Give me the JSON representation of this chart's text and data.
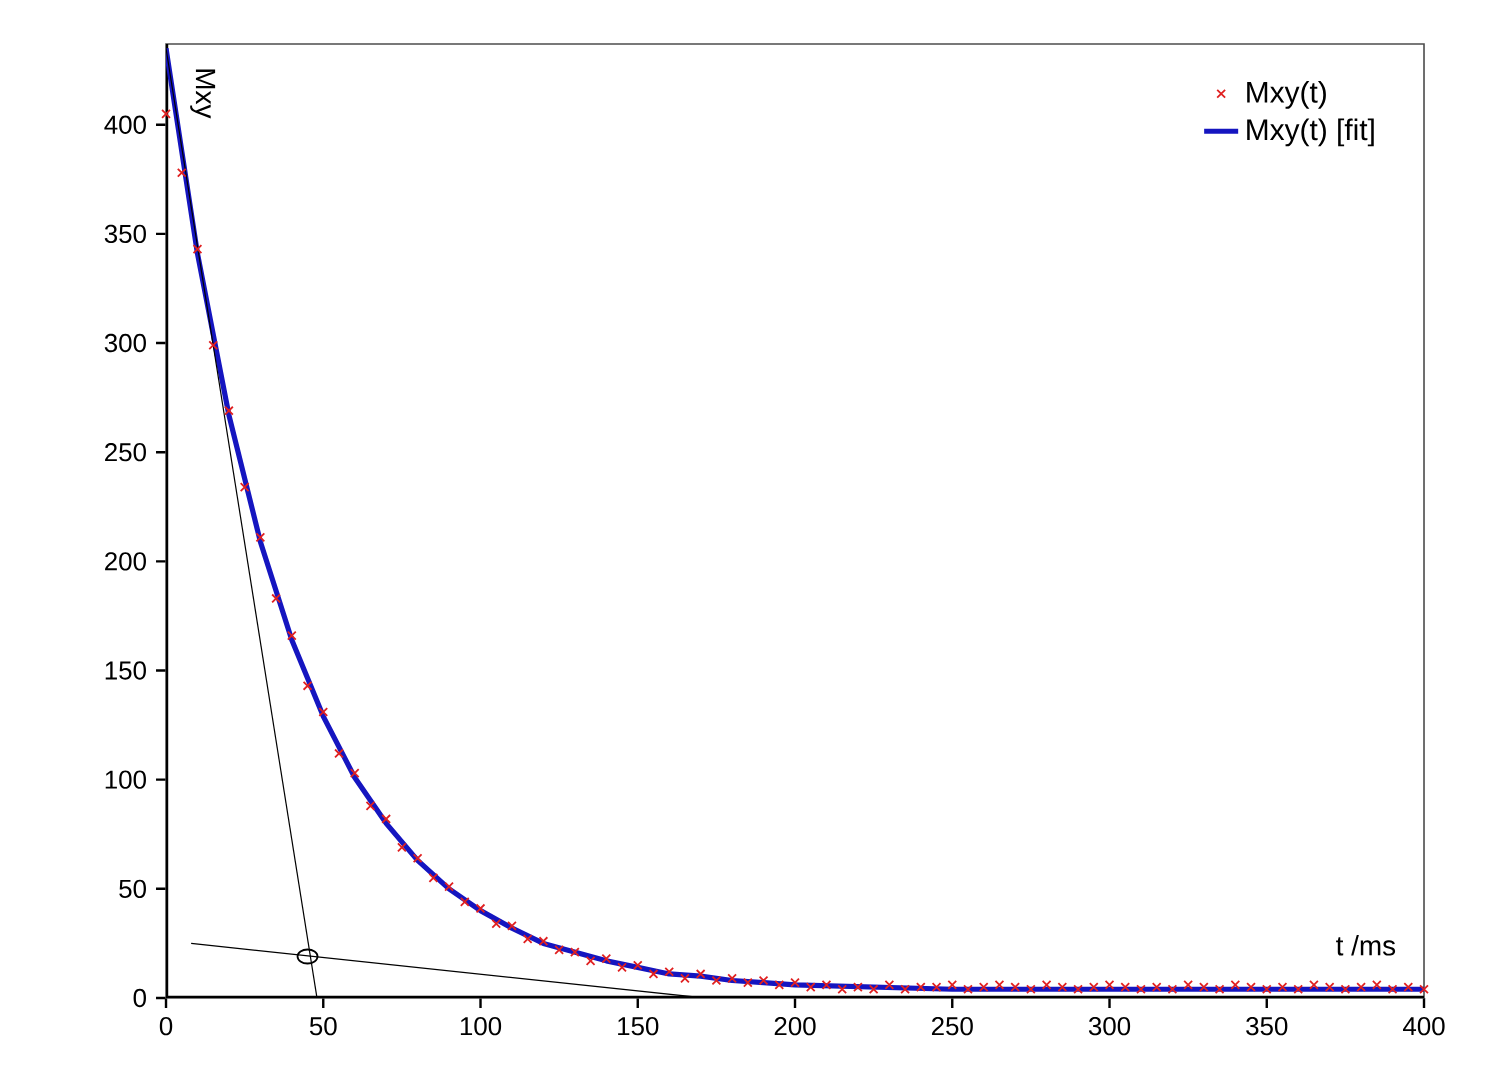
{
  "chart_data": {
    "type": "scatter",
    "ylabel": "Mxy",
    "xlabel": "t /ms",
    "xlim": [
      0,
      400
    ],
    "ylim": [
      0,
      437
    ],
    "xticks": [
      0,
      50,
      100,
      150,
      200,
      250,
      300,
      350,
      400
    ],
    "yticks": [
      0,
      50,
      100,
      150,
      200,
      250,
      300,
      350,
      400
    ],
    "legend": "top right",
    "series": [
      {
        "name": "Mxy(t)",
        "marker": "cross",
        "color": "#e02020",
        "x": [
          0,
          5,
          10,
          15,
          20,
          25,
          30,
          35,
          40,
          45,
          50,
          55,
          60,
          65,
          70,
          75,
          80,
          85,
          90,
          95,
          100,
          105,
          110,
          115,
          120,
          125,
          130,
          135,
          140,
          145,
          150,
          155,
          160,
          165,
          170,
          175,
          180,
          185,
          190,
          195,
          200,
          205,
          210,
          215,
          220,
          225,
          230,
          235,
          240,
          245,
          250,
          255,
          260,
          265,
          270,
          275,
          280,
          285,
          290,
          295,
          300,
          305,
          310,
          315,
          320,
          325,
          330,
          335,
          340,
          345,
          350,
          355,
          360,
          365,
          370,
          375,
          380,
          385,
          390,
          395,
          400
        ],
        "values": [
          405,
          378,
          343,
          299,
          269,
          234,
          211,
          183,
          166,
          143,
          131,
          112,
          103,
          88,
          82,
          69,
          64,
          55,
          51,
          44,
          41,
          34,
          33,
          27,
          26,
          22,
          21,
          17,
          18,
          14,
          15,
          11,
          12,
          9,
          11,
          8,
          9,
          7,
          8,
          6,
          7,
          5,
          6,
          4,
          5,
          4,
          6,
          4,
          5,
          5,
          6,
          4,
          5,
          6,
          5,
          4,
          6,
          5,
          4,
          5,
          6,
          5,
          4,
          5,
          4,
          6,
          5,
          4,
          6,
          5,
          4,
          5,
          4,
          6,
          5,
          4,
          5,
          6,
          4,
          5,
          4
        ]
      },
      {
        "name": "Mxy(t) [fit]",
        "type": "line",
        "marker": "none",
        "color": "#1515c0",
        "x": [
          0,
          10,
          20,
          30,
          40,
          50,
          60,
          70,
          80,
          90,
          100,
          110,
          120,
          130,
          140,
          150,
          160,
          170,
          180,
          190,
          200,
          250,
          300,
          350,
          400
        ],
        "values": [
          435,
          341,
          267,
          209,
          164,
          129,
          101,
          80,
          63,
          50,
          40,
          32,
          25,
          21,
          17,
          14,
          11,
          10,
          8,
          7,
          6,
          4,
          4,
          4,
          4
        ]
      },
      {
        "type": "line",
        "marker": "none",
        "color": "#000000",
        "x": [
          0,
          48
        ],
        "values": [
          435,
          0
        ]
      },
      {
        "type": "line",
        "marker": "none",
        "color": "#000000",
        "x": [
          8,
          171
        ],
        "values": [
          25,
          0
        ]
      },
      {
        "marker": "circle",
        "color": "#000000",
        "x": [
          45
        ],
        "values": [
          19
        ]
      }
    ]
  }
}
